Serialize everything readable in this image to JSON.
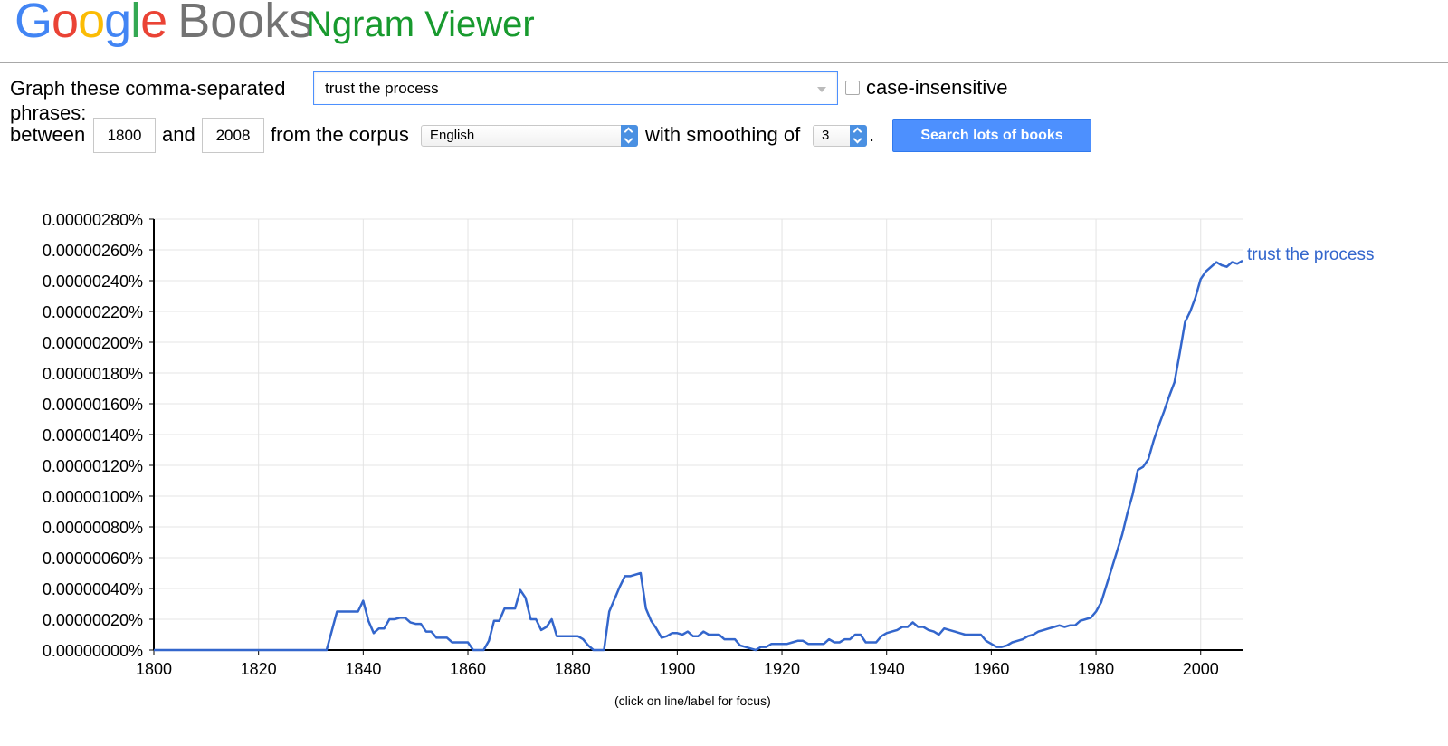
{
  "header": {
    "logo_google": "Google",
    "logo_books": "Books",
    "product": "Ngram Viewer"
  },
  "form": {
    "phrases_label_line1": "Graph these comma-separated",
    "phrases_label_line2": "phrases:",
    "phrases_value": "trust the process",
    "case_insensitive_label": "case-insensitive",
    "case_insensitive_checked": false,
    "between_label": "between",
    "start_year": "1800",
    "and_label": "and",
    "end_year": "2008",
    "corpus_label": "from the corpus",
    "corpus_value": "English",
    "smoothing_label": "with smoothing of",
    "smoothing_value": "3",
    "period": ".",
    "search_button": "Search lots of books"
  },
  "caption": "(click on line/label for focus)",
  "chart_data": {
    "type": "line",
    "x_range": [
      1800,
      2008
    ],
    "ylim": [
      0,
      2.8e-06
    ],
    "x_ticks": [
      "1800",
      "1820",
      "1840",
      "1860",
      "1880",
      "1900",
      "1920",
      "1940",
      "1960",
      "1980",
      "2000"
    ],
    "y_ticks": [
      "0.00000000%",
      "0.00000020%",
      "0.00000040%",
      "0.00000060%",
      "0.00000080%",
      "0.00000100%",
      "0.00000120%",
      "0.00000140%",
      "0.00000160%",
      "0.00000180%",
      "0.00000200%",
      "0.00000220%",
      "0.00000240%",
      "0.00000260%",
      "0.00000280%"
    ],
    "grid": true,
    "line_color": "#3366cc",
    "series": [
      {
        "name": "trust the process",
        "x": [
          1800,
          1833,
          1835,
          1839,
          1840,
          1841,
          1842,
          1843,
          1844,
          1845,
          1846,
          1847,
          1848,
          1849,
          1850,
          1851,
          1852,
          1853,
          1854,
          1855,
          1856,
          1857,
          1858,
          1859,
          1860,
          1861,
          1863,
          1864,
          1865,
          1866,
          1867,
          1868,
          1869,
          1870,
          1871,
          1872,
          1873,
          1874,
          1875,
          1876,
          1877,
          1880,
          1881,
          1882,
          1883,
          1884,
          1886,
          1887,
          1888,
          1889,
          1890,
          1891,
          1892,
          1893,
          1894,
          1895,
          1896,
          1897,
          1898,
          1899,
          1900,
          1901,
          1902,
          1903,
          1904,
          1905,
          1906,
          1907,
          1908,
          1909,
          1910,
          1911,
          1912,
          1913,
          1914,
          1915,
          1916,
          1917,
          1918,
          1919,
          1920,
          1921,
          1922,
          1923,
          1924,
          1925,
          1926,
          1927,
          1928,
          1929,
          1930,
          1931,
          1932,
          1933,
          1934,
          1935,
          1936,
          1937,
          1938,
          1939,
          1940,
          1941,
          1942,
          1943,
          1944,
          1945,
          1946,
          1947,
          1948,
          1949,
          1950,
          1951,
          1952,
          1953,
          1954,
          1955,
          1956,
          1957,
          1958,
          1959,
          1960,
          1961,
          1962,
          1963,
          1964,
          1965,
          1966,
          1967,
          1968,
          1969,
          1970,
          1971,
          1972,
          1973,
          1974,
          1975,
          1976,
          1977,
          1978,
          1979,
          1980,
          1981,
          1982,
          1983,
          1984,
          1985,
          1986,
          1987,
          1988,
          1989,
          1990,
          1991,
          1992,
          1993,
          1994,
          1995,
          1996,
          1997,
          1998,
          1999,
          2000,
          2001,
          2002,
          2003,
          2004,
          2005,
          2006,
          2007,
          2008
        ],
        "y": [
          0,
          0,
          2.5e-07,
          2.5e-07,
          3.2e-07,
          1.9e-07,
          1.1e-07,
          1.4e-07,
          1.4e-07,
          2e-07,
          2e-07,
          2.1e-07,
          2.1e-07,
          1.8e-07,
          1.7e-07,
          1.7e-07,
          1.2e-07,
          1.2e-07,
          8e-08,
          8e-08,
          8e-08,
          5e-08,
          5e-08,
          5e-08,
          5e-08,
          0,
          0,
          6e-08,
          1.9e-07,
          1.9e-07,
          2.7e-07,
          2.7e-07,
          2.7e-07,
          3.9e-07,
          3.4e-07,
          2e-07,
          2e-07,
          1.3e-07,
          1.5e-07,
          2e-07,
          9e-08,
          9e-08,
          9e-08,
          7e-08,
          3e-08,
          0,
          0,
          2.5e-07,
          3.3e-07,
          4.1e-07,
          4.8e-07,
          4.8e-07,
          4.9e-07,
          5e-07,
          2.7e-07,
          1.9e-07,
          1.4e-07,
          8e-08,
          9e-08,
          1.1e-07,
          1.1e-07,
          1e-07,
          1.2e-07,
          9e-08,
          9e-08,
          1.2e-07,
          1e-07,
          1e-07,
          1e-07,
          7e-08,
          7e-08,
          7e-08,
          3e-08,
          2e-08,
          1e-08,
          0,
          2e-08,
          2e-08,
          4e-08,
          4e-08,
          4e-08,
          4e-08,
          5e-08,
          6e-08,
          6e-08,
          4e-08,
          4e-08,
          4e-08,
          4e-08,
          7e-08,
          5e-08,
          5e-08,
          7e-08,
          7e-08,
          1e-07,
          1e-07,
          5e-08,
          5e-08,
          5e-08,
          9e-08,
          1.1e-07,
          1.2e-07,
          1.3e-07,
          1.5e-07,
          1.5e-07,
          1.8e-07,
          1.5e-07,
          1.5e-07,
          1.3e-07,
          1.2e-07,
          1e-07,
          1.4e-07,
          1.3e-07,
          1.2e-07,
          1.1e-07,
          1e-07,
          1e-07,
          1e-07,
          1e-07,
          6e-08,
          4e-08,
          2e-08,
          2e-08,
          3e-08,
          5e-08,
          6e-08,
          7e-08,
          9e-08,
          1e-07,
          1.2e-07,
          1.3e-07,
          1.4e-07,
          1.5e-07,
          1.6e-07,
          1.5e-07,
          1.6e-07,
          1.6e-07,
          1.9e-07,
          2e-07,
          2.1e-07,
          2.5e-07,
          3.1e-07,
          4.2e-07,
          5.3e-07,
          6.4e-07,
          7.5e-07,
          8.9e-07,
          1.01e-06,
          1.17e-06,
          1.19e-06,
          1.24e-06,
          1.36e-06,
          1.46e-06,
          1.55e-06,
          1.65e-06,
          1.74e-06,
          1.93e-06,
          2.13e-06,
          2.2e-06,
          2.29e-06,
          2.41e-06,
          2.46e-06,
          2.49e-06,
          2.52e-06,
          2.5e-06,
          2.49e-06,
          2.52e-06,
          2.51e-06,
          2.53e-06
        ]
      }
    ]
  }
}
